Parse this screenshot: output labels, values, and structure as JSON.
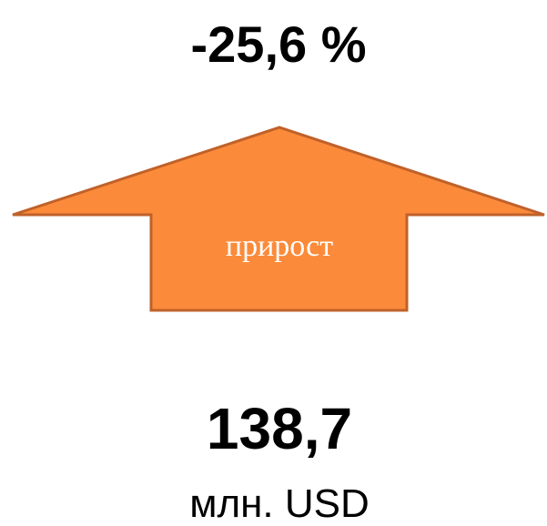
{
  "change": "-25,6 %",
  "arrow_label": "прирост",
  "value": "138,7",
  "unit": "млн. USD"
}
